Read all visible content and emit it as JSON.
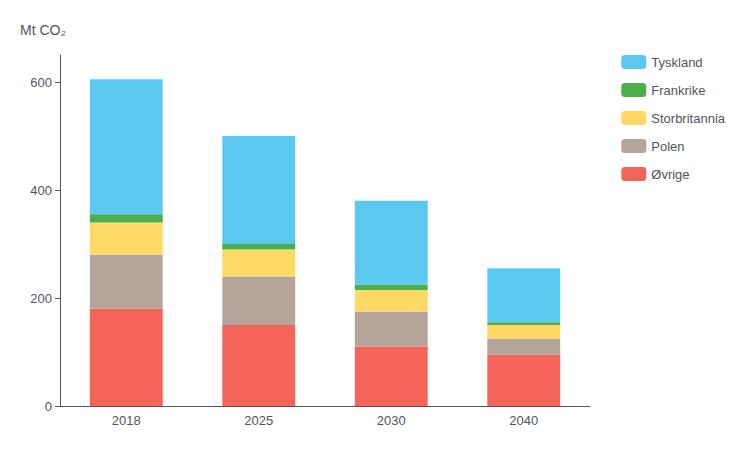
{
  "chart_data": {
    "type": "bar",
    "stacked": true,
    "ylabel": "Mt CO₂",
    "categories": [
      "2018",
      "2025",
      "2030",
      "2040"
    ],
    "series": [
      {
        "name": "Øvrige",
        "color": "#f4645a",
        "values": [
          180,
          150,
          110,
          95
        ]
      },
      {
        "name": "Polen",
        "color": "#b5a49a",
        "values": [
          100,
          90,
          65,
          30
        ]
      },
      {
        "name": "Storbritannia",
        "color": "#ffd966",
        "values": [
          60,
          50,
          40,
          25
        ]
      },
      {
        "name": "Frankrike",
        "color": "#4cae4c",
        "values": [
          15,
          10,
          10,
          5
        ]
      },
      {
        "name": "Tyskland",
        "color": "#5bc8f0",
        "values": [
          250,
          200,
          155,
          100
        ]
      }
    ],
    "ylim": [
      0,
      650
    ],
    "yticks": [
      0,
      200,
      400,
      600
    ],
    "grid": false,
    "legend": "right"
  }
}
